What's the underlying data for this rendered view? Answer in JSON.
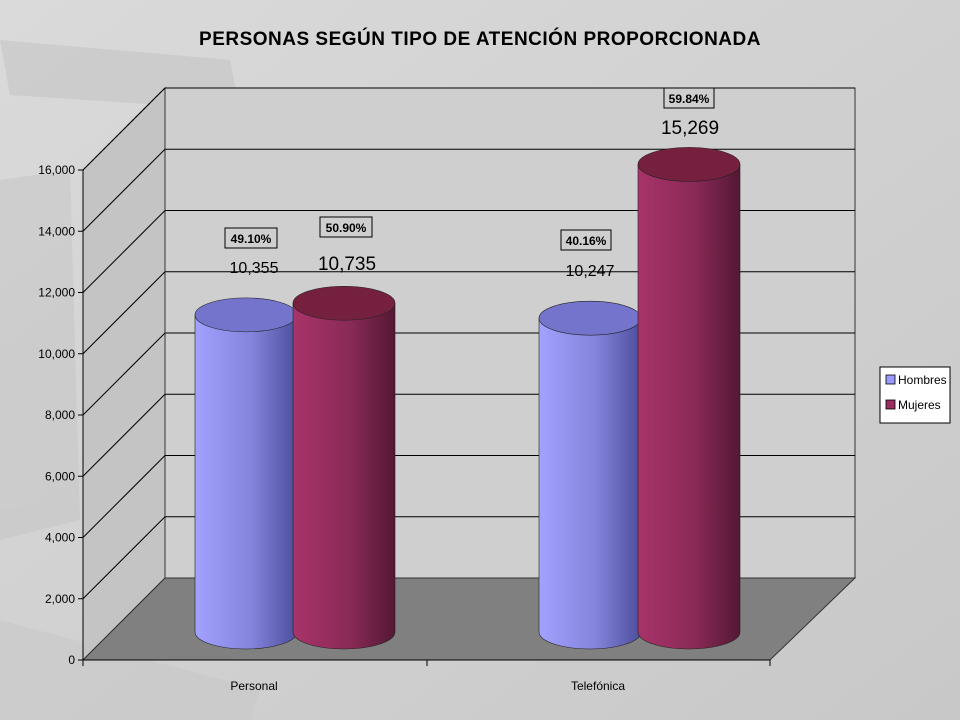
{
  "chart_data": {
    "type": "bar",
    "title": "PERSONAS SEGÚN TIPO DE ATENCIÓN PROPORCIONADA",
    "categories": [
      "Personal",
      "Telefónica"
    ],
    "series": [
      {
        "name": "Hombres",
        "color": "#8c8ce8",
        "values": [
          10355,
          10247
        ],
        "value_labels": [
          "10,355",
          "10,247"
        ],
        "percent_labels": [
          "49.10%",
          "40.16%"
        ]
      },
      {
        "name": "Mujeres",
        "color": "#9a2e5e",
        "values": [
          10735,
          15269
        ],
        "value_labels": [
          "10,735",
          "15,269"
        ],
        "percent_labels": [
          "50.90%",
          "59.84%"
        ]
      }
    ],
    "ylim": [
      0,
      16000
    ],
    "yticks": [
      "0",
      "2,000",
      "4,000",
      "6,000",
      "8,000",
      "10,000",
      "12,000",
      "14,000",
      "16,000"
    ],
    "grid": true,
    "legend_position": "right"
  }
}
